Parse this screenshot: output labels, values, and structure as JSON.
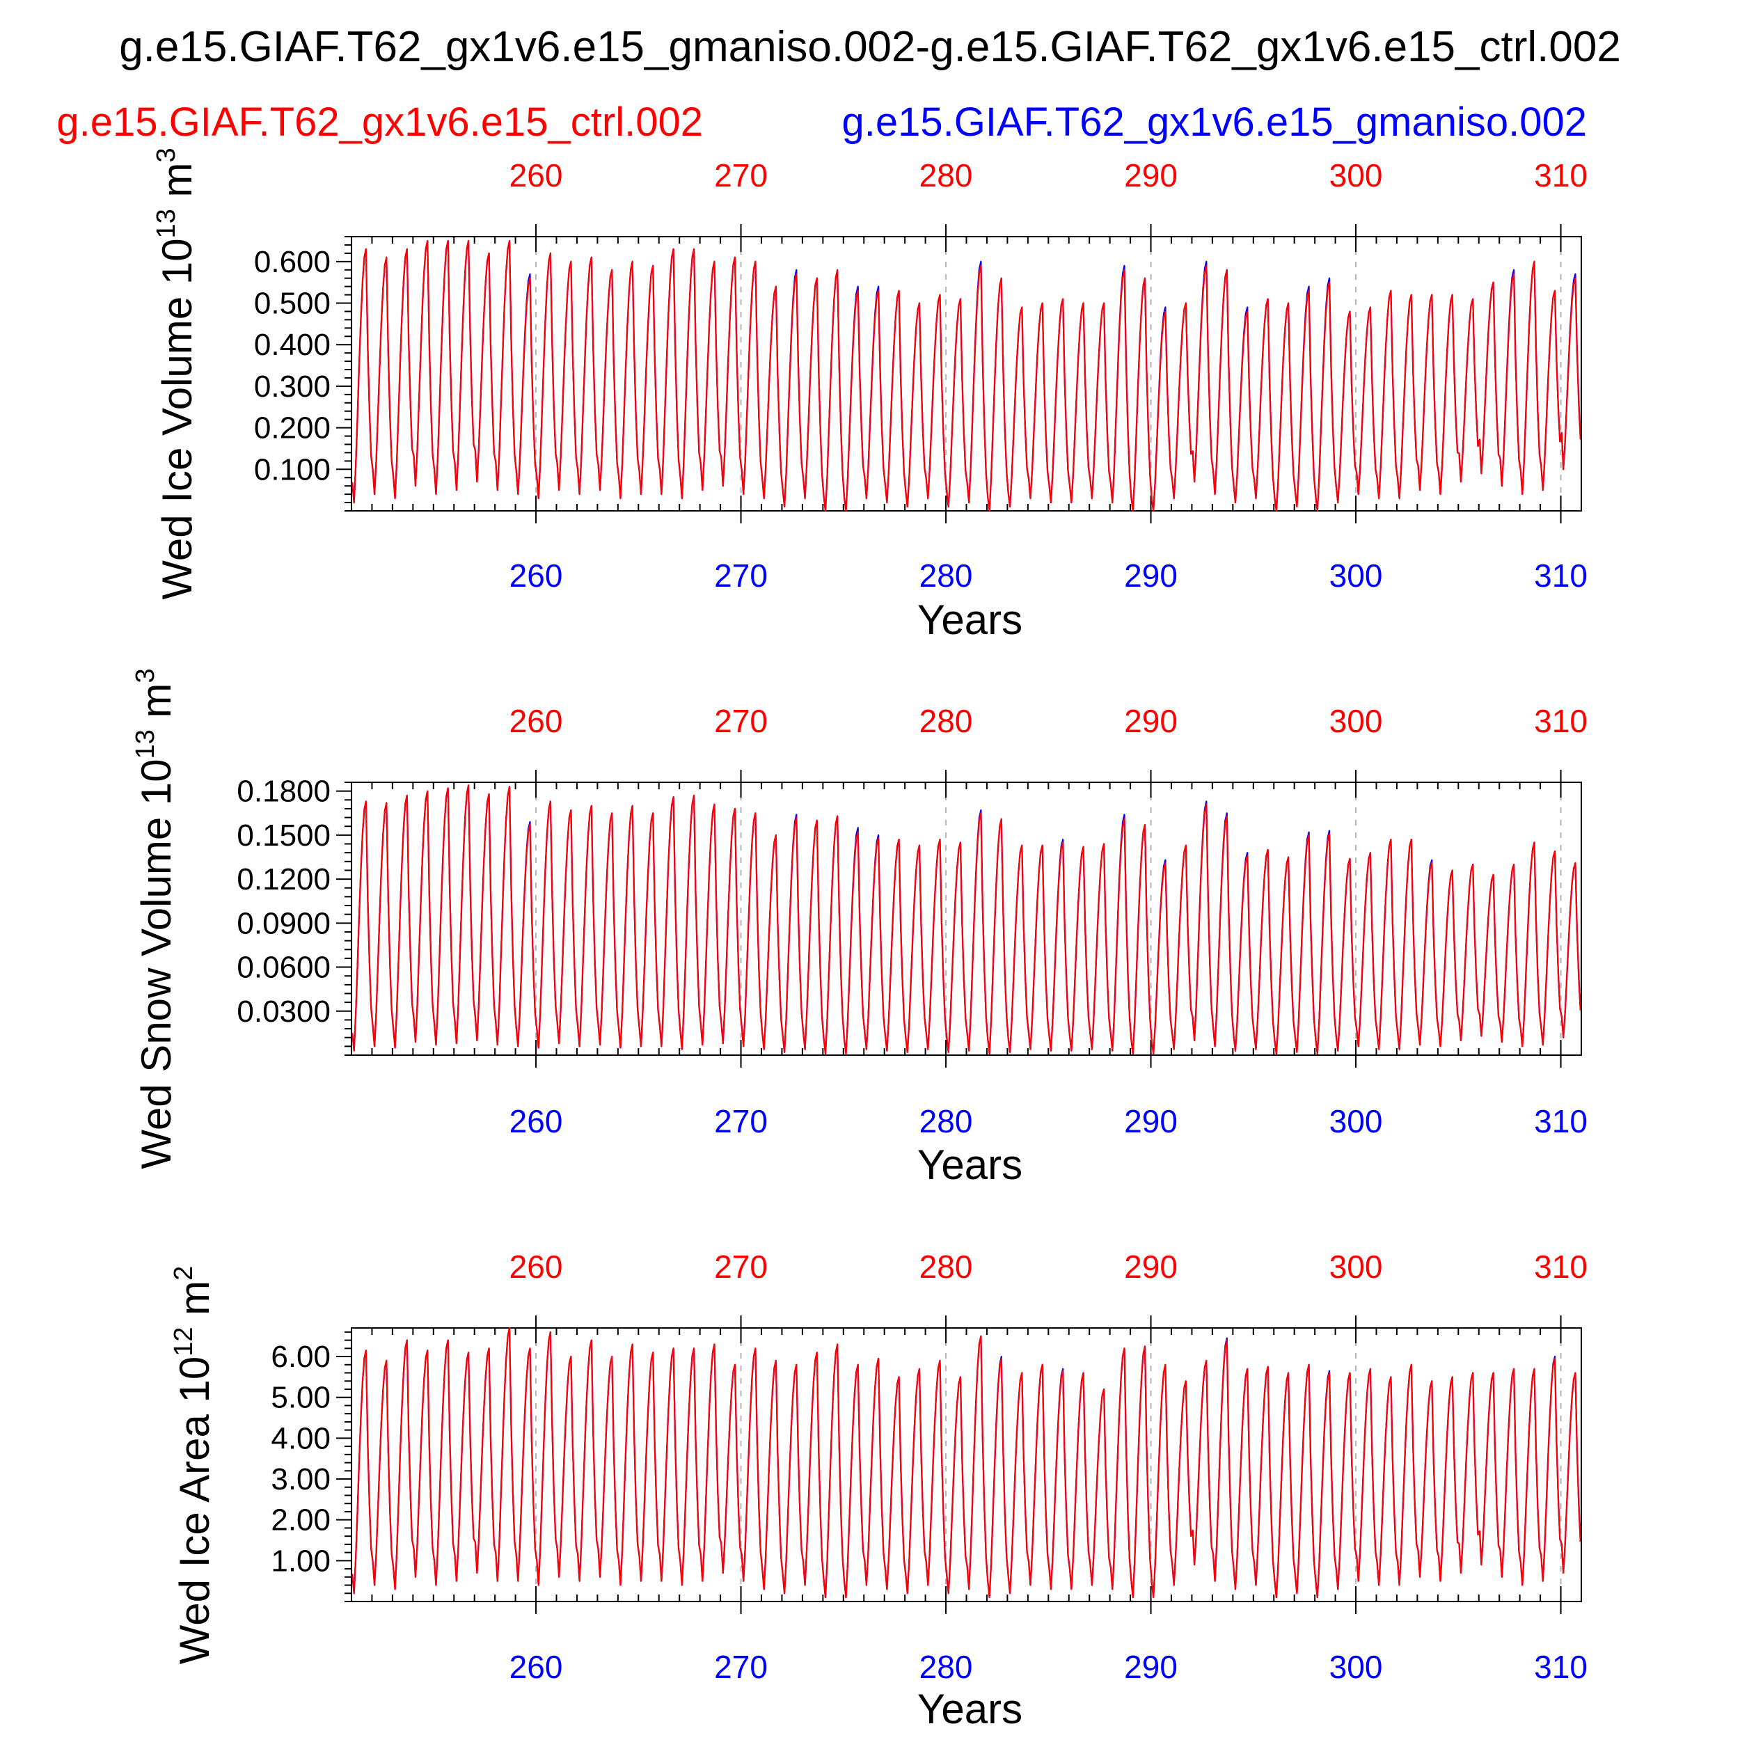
{
  "figure": {
    "title": "g.e15.GIAF.T62_gx1v6.e15_gmaniso.002-g.e15.GIAF.T62_gx1v6.e15_ctrl.002",
    "legend_ctrl": "g.e15.GIAF.T62_gx1v6.e15_ctrl.002",
    "legend_aniso": "g.e15.GIAF.T62_gx1v6.e15_gmaniso.002"
  },
  "colors": {
    "ctrl": "#ff0000",
    "aniso": "#0000ff",
    "axis": "#000000",
    "grid": "#b4b4b4"
  },
  "chart_data": [
    {
      "type": "line",
      "ylabel": "Wed Ice Volume 10",
      "yexp": "13",
      "yunit": "m",
      "yunitexp": "3",
      "xlabel": "Years",
      "xlim": [
        251.0,
        311.0
      ],
      "ylim": [
        0.0,
        0.66
      ],
      "ytick_values": [
        0.1,
        0.2,
        0.3,
        0.4,
        0.5,
        0.6
      ],
      "ytick_labels": [
        "0.100",
        "0.200",
        "0.300",
        "0.400",
        "0.500",
        "0.600"
      ],
      "xtick_values": [
        260,
        270,
        280,
        290,
        300,
        310
      ],
      "xtick_labels_top": [
        "260",
        "270",
        "280",
        "290",
        "300",
        "310"
      ],
      "xtick_labels_bottom": [
        "260",
        "270",
        "280",
        "290",
        "300",
        "310"
      ],
      "start_year": 251,
      "annual_max_ctrl": [
        0.63,
        0.61,
        0.63,
        0.65,
        0.65,
        0.65,
        0.62,
        0.65,
        0.56,
        0.62,
        0.6,
        0.61,
        0.58,
        0.6,
        0.59,
        0.63,
        0.63,
        0.6,
        0.61,
        0.6,
        0.54,
        0.57,
        0.56,
        0.58,
        0.53,
        0.53,
        0.53,
        0.5,
        0.52,
        0.51,
        0.59,
        0.56,
        0.49,
        0.5,
        0.51,
        0.5,
        0.5,
        0.58,
        0.56,
        0.48,
        0.5,
        0.59,
        0.58,
        0.48,
        0.51,
        0.5,
        0.53,
        0.55,
        0.48,
        0.49,
        0.53,
        0.52,
        0.52,
        0.52,
        0.51,
        0.55,
        0.57,
        0.6,
        0.53,
        0.56
      ],
      "annual_min_ctrl": [
        0.02,
        0.04,
        0.03,
        0.06,
        0.04,
        0.05,
        0.07,
        0.05,
        0.04,
        0.03,
        0.05,
        0.04,
        0.05,
        0.03,
        0.04,
        0.04,
        0.03,
        0.05,
        0.06,
        0.04,
        0.03,
        0.01,
        0.03,
        0.0,
        0.0,
        0.03,
        0.02,
        0.01,
        0.03,
        0.01,
        0.02,
        0.0,
        0.01,
        0.03,
        0.02,
        0.02,
        0.03,
        0.02,
        0.0,
        0.0,
        0.03,
        0.07,
        0.04,
        0.02,
        0.03,
        0.0,
        0.01,
        0.0,
        0.02,
        0.04,
        0.03,
        0.03,
        0.05,
        0.04,
        0.07,
        0.09,
        0.06,
        0.04,
        0.05,
        0.1
      ],
      "aniso_offsets": [
        0.0,
        0.0,
        0.0,
        0.0,
        0.0,
        0.0,
        0.0,
        0.0,
        0.01,
        0.0,
        0.0,
        0.0,
        0.0,
        0.0,
        0.0,
        0.0,
        0.0,
        0.0,
        0.0,
        0.0,
        0.0,
        0.01,
        0.0,
        0.0,
        0.01,
        0.01,
        0.0,
        0.0,
        0.0,
        0.0,
        0.01,
        0.0,
        0.0,
        0.0,
        0.0,
        0.0,
        0.0,
        0.01,
        0.0,
        0.01,
        0.0,
        0.01,
        0.0,
        0.01,
        0.0,
        0.0,
        0.01,
        0.01,
        0.0,
        0.0,
        0.0,
        0.0,
        0.0,
        0.0,
        0.0,
        0.0,
        0.01,
        0.0,
        0.0,
        0.01
      ]
    },
    {
      "type": "line",
      "ylabel": "Wed Snow Volume 10",
      "yexp": "13",
      "yunit": "m",
      "yunitexp": "3",
      "xlabel": "Years",
      "xlim": [
        251.0,
        311.0
      ],
      "ylim": [
        0.0,
        0.186
      ],
      "ytick_values": [
        0.03,
        0.06,
        0.09,
        0.12,
        0.15,
        0.18
      ],
      "ytick_labels": [
        "0.0300",
        "0.0600",
        "0.0900",
        "0.1200",
        "0.1500",
        "0.1800"
      ],
      "xtick_values": [
        260,
        270,
        280,
        290,
        300,
        310
      ],
      "xtick_labels_top": [
        "260",
        "270",
        "280",
        "290",
        "300",
        "310"
      ],
      "xtick_labels_bottom": [
        "260",
        "270",
        "280",
        "290",
        "300",
        "310"
      ],
      "start_year": 251,
      "annual_max_ctrl": [
        0.173,
        0.172,
        0.177,
        0.18,
        0.182,
        0.184,
        0.178,
        0.183,
        0.157,
        0.173,
        0.167,
        0.17,
        0.165,
        0.17,
        0.165,
        0.176,
        0.177,
        0.171,
        0.168,
        0.165,
        0.15,
        0.162,
        0.16,
        0.163,
        0.152,
        0.148,
        0.147,
        0.143,
        0.147,
        0.145,
        0.165,
        0.161,
        0.143,
        0.143,
        0.145,
        0.142,
        0.144,
        0.161,
        0.157,
        0.131,
        0.143,
        0.171,
        0.163,
        0.136,
        0.14,
        0.135,
        0.15,
        0.151,
        0.134,
        0.138,
        0.147,
        0.147,
        0.131,
        0.126,
        0.13,
        0.123,
        0.13,
        0.145,
        0.139,
        0.131
      ],
      "annual_min_ctrl": [
        0.003,
        0.006,
        0.005,
        0.009,
        0.007,
        0.008,
        0.01,
        0.007,
        0.006,
        0.005,
        0.008,
        0.006,
        0.007,
        0.005,
        0.006,
        0.006,
        0.004,
        0.007,
        0.008,
        0.006,
        0.004,
        0.002,
        0.004,
        0.001,
        0.001,
        0.004,
        0.003,
        0.002,
        0.004,
        0.002,
        0.003,
        0.001,
        0.002,
        0.004,
        0.003,
        0.003,
        0.004,
        0.003,
        0.001,
        0.001,
        0.004,
        0.01,
        0.006,
        0.003,
        0.004,
        0.001,
        0.002,
        0.001,
        0.003,
        0.006,
        0.004,
        0.004,
        0.007,
        0.006,
        0.01,
        0.013,
        0.009,
        0.006,
        0.007,
        0.012
      ],
      "aniso_offsets": [
        0.0,
        0.0,
        0.0,
        0.0,
        0.0,
        0.0,
        0.0,
        0.0,
        0.002,
        0.0,
        0.0,
        0.0,
        0.0,
        0.0,
        0.0,
        0.0,
        0.0,
        0.0,
        0.0,
        0.0,
        0.0,
        0.002,
        0.0,
        0.0,
        0.003,
        0.002,
        0.0,
        0.0,
        0.0,
        0.0,
        0.002,
        0.0,
        0.0,
        0.0,
        0.002,
        0.0,
        0.0,
        0.003,
        0.0,
        0.002,
        0.0,
        0.002,
        0.002,
        0.002,
        0.0,
        0.0,
        0.002,
        0.002,
        0.0,
        0.0,
        0.0,
        0.0,
        0.002,
        0.0,
        0.0,
        0.0,
        0.0,
        0.0,
        0.0,
        0.0
      ]
    },
    {
      "type": "line",
      "ylabel": "Wed Ice Area 10",
      "yexp": "12",
      "yunit": "m",
      "yunitexp": "2",
      "xlabel": "Years",
      "xlim": [
        251.0,
        311.0
      ],
      "ylim": [
        0.0,
        6.7
      ],
      "ytick_values": [
        1,
        2,
        3,
        4,
        5,
        6
      ],
      "ytick_labels": [
        "1.00",
        "2.00",
        "3.00",
        "4.00",
        "5.00",
        "6.00"
      ],
      "xtick_values": [
        260,
        270,
        280,
        290,
        300,
        310
      ],
      "xtick_labels_top": [
        "260",
        "270",
        "280",
        "290",
        "300",
        "310"
      ],
      "xtick_labels_bottom": [
        "260",
        "270",
        "280",
        "290",
        "300",
        "310"
      ],
      "start_year": 251,
      "annual_max_ctrl": [
        6.15,
        5.9,
        6.4,
        6.15,
        6.4,
        6.1,
        6.2,
        6.7,
        6.2,
        6.6,
        6.0,
        6.4,
        6.0,
        6.3,
        6.1,
        6.2,
        6.2,
        6.3,
        5.8,
        6.2,
        5.9,
        5.8,
        6.1,
        6.3,
        5.8,
        5.95,
        5.5,
        5.7,
        5.9,
        5.5,
        6.5,
        5.95,
        5.6,
        5.8,
        5.65,
        5.6,
        5.2,
        6.2,
        6.25,
        5.8,
        5.4,
        5.9,
        6.4,
        5.7,
        5.75,
        5.6,
        5.8,
        5.6,
        5.6,
        5.7,
        5.5,
        5.8,
        5.4,
        5.5,
        5.6,
        5.6,
        5.7,
        5.7,
        5.95,
        5.6
      ],
      "annual_min_ctrl": [
        0.2,
        0.4,
        0.3,
        0.6,
        0.4,
        0.5,
        0.7,
        0.5,
        0.5,
        0.4,
        0.6,
        0.5,
        0.6,
        0.4,
        0.5,
        0.5,
        0.4,
        0.5,
        0.7,
        0.5,
        0.3,
        0.2,
        0.4,
        0.1,
        0.1,
        0.4,
        0.3,
        0.2,
        0.4,
        0.2,
        0.3,
        0.1,
        0.2,
        0.4,
        0.3,
        0.3,
        0.4,
        0.3,
        0.1,
        0.1,
        0.4,
        0.9,
        0.5,
        0.3,
        0.4,
        0.1,
        0.2,
        0.1,
        0.3,
        0.5,
        0.4,
        0.4,
        0.6,
        0.5,
        0.7,
        0.9,
        0.6,
        0.4,
        0.5,
        0.7
      ],
      "aniso_offsets": [
        0.0,
        0.0,
        0.0,
        0.0,
        0.0,
        0.0,
        0.0,
        0.0,
        0.0,
        0.0,
        0.0,
        0.0,
        0.0,
        0.0,
        0.0,
        0.0,
        0.0,
        0.0,
        0.0,
        0.0,
        0.0,
        0.0,
        0.0,
        0.0,
        0.0,
        0.0,
        0.0,
        0.0,
        0.0,
        0.0,
        0.0,
        0.05,
        0.0,
        0.0,
        0.05,
        0.0,
        0.0,
        0.0,
        0.0,
        0.0,
        0.0,
        0.0,
        0.05,
        0.0,
        0.0,
        0.0,
        0.0,
        0.05,
        0.0,
        0.0,
        0.0,
        0.0,
        0.0,
        0.0,
        0.0,
        0.0,
        0.0,
        0.0,
        0.05,
        0.0
      ]
    }
  ]
}
